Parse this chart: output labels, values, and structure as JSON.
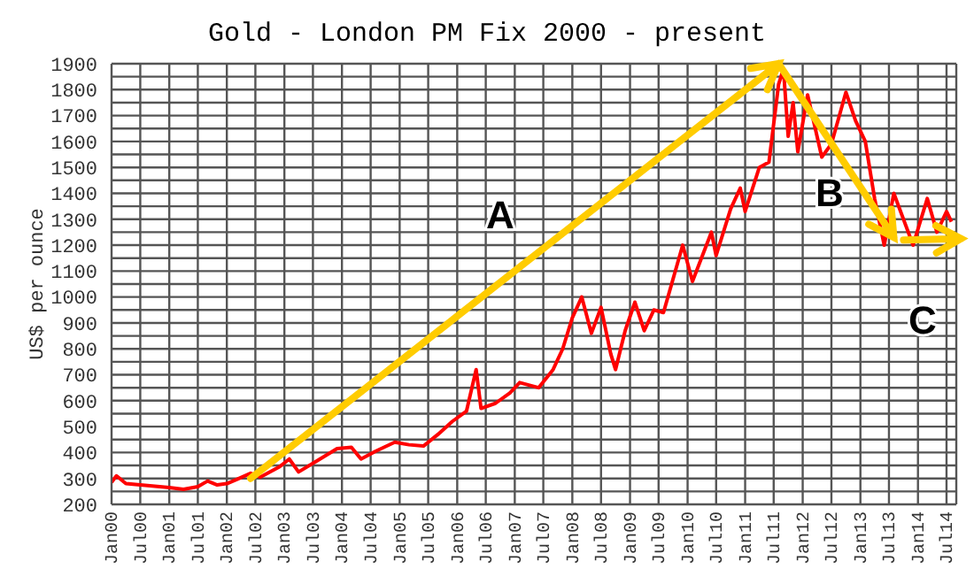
{
  "chart_data": {
    "type": "line",
    "title": "Gold - London PM Fix 2000 - present",
    "ylabel": "US$ per ounce",
    "x": [
      "2000-01",
      "2000-02",
      "2000-04",
      "2000-09",
      "2001-01",
      "2001-04",
      "2001-07",
      "2001-09",
      "2001-11",
      "2002-01",
      "2002-03",
      "2002-06",
      "2002-08",
      "2002-12",
      "2003-02",
      "2003-04",
      "2003-08",
      "2003-12",
      "2004-03",
      "2004-05",
      "2004-08",
      "2004-12",
      "2005-03",
      "2005-06",
      "2005-09",
      "2005-12",
      "2006-03",
      "2006-05",
      "2006-06",
      "2006-09",
      "2006-12",
      "2007-02",
      "2007-06",
      "2007-09",
      "2007-11",
      "2008-01",
      "2008-03",
      "2008-05",
      "2008-07",
      "2008-09",
      "2008-10",
      "2008-12",
      "2009-02",
      "2009-04",
      "2009-06",
      "2009-08",
      "2009-12",
      "2010-02",
      "2010-06",
      "2010-07",
      "2010-10",
      "2010-12",
      "2011-01",
      "2011-04",
      "2011-06",
      "2011-08",
      "2011-09",
      "2011-10",
      "2011-11",
      "2011-12",
      "2012-02",
      "2012-05",
      "2012-07",
      "2012-10",
      "2012-12",
      "2013-02",
      "2013-04",
      "2013-06",
      "2013-08",
      "2013-12",
      "2014-03",
      "2014-05",
      "2014-07",
      "2014-08"
    ],
    "series": [
      {
        "color": "#ff0000",
        "values": [
          285,
          310,
          280,
          272,
          265,
          258,
          268,
          290,
          275,
          280,
          295,
          320,
          305,
          345,
          375,
          325,
          370,
          415,
          420,
          375,
          405,
          440,
          430,
          425,
          470,
          520,
          560,
          720,
          570,
          590,
          630,
          670,
          650,
          720,
          800,
          920,
          1000,
          860,
          960,
          780,
          720,
          870,
          980,
          870,
          950,
          940,
          1200,
          1060,
          1250,
          1160,
          1340,
          1420,
          1330,
          1500,
          1520,
          1820,
          1880,
          1620,
          1750,
          1560,
          1780,
          1540,
          1590,
          1790,
          1680,
          1600,
          1380,
          1200,
          1400,
          1200,
          1380,
          1250,
          1330,
          1290
        ]
      }
    ],
    "xlim": [
      "2000-01",
      "2014-09"
    ],
    "xticks": [
      {
        "value": "2000-01",
        "label": "Jan00"
      },
      {
        "value": "2000-07",
        "label": "Jul00"
      },
      {
        "value": "2001-01",
        "label": "Jan01"
      },
      {
        "value": "2001-07",
        "label": "Jul01"
      },
      {
        "value": "2002-01",
        "label": "Jan02"
      },
      {
        "value": "2002-07",
        "label": "Jul02"
      },
      {
        "value": "2003-01",
        "label": "Jan03"
      },
      {
        "value": "2003-07",
        "label": "Jul03"
      },
      {
        "value": "2004-01",
        "label": "Jan04"
      },
      {
        "value": "2004-07",
        "label": "Jul04"
      },
      {
        "value": "2005-01",
        "label": "Jan05"
      },
      {
        "value": "2005-07",
        "label": "Jul05"
      },
      {
        "value": "2006-01",
        "label": "Jan06"
      },
      {
        "value": "2006-07",
        "label": "Jul06"
      },
      {
        "value": "2007-01",
        "label": "Jan07"
      },
      {
        "value": "2007-07",
        "label": "Jul07"
      },
      {
        "value": "2008-01",
        "label": "Jan08"
      },
      {
        "value": "2008-07",
        "label": "Jul08"
      },
      {
        "value": "2009-01",
        "label": "Jan09"
      },
      {
        "value": "2009-07",
        "label": "Jul09"
      },
      {
        "value": "2010-01",
        "label": "Jan10"
      },
      {
        "value": "2010-07",
        "label": "Jul10"
      },
      {
        "value": "2011-01",
        "label": "Jan11"
      },
      {
        "value": "2011-07",
        "label": "Jul11"
      },
      {
        "value": "2012-01",
        "label": "Jan12"
      },
      {
        "value": "2012-07",
        "label": "Jul12"
      },
      {
        "value": "2013-01",
        "label": "Jan13"
      },
      {
        "value": "2013-07",
        "label": "Jul13"
      },
      {
        "value": "2014-01",
        "label": "Jan14"
      },
      {
        "value": "2014-07",
        "label": "Jul14"
      }
    ],
    "ylim": [
      200,
      1900
    ],
    "yticks": [
      200,
      {
        "value": 250,
        "label": null
      },
      300,
      {
        "value": 350,
        "label": null
      },
      400,
      {
        "value": 450,
        "label": null
      },
      500,
      {
        "value": 550,
        "label": null
      },
      600,
      {
        "value": 650,
        "label": null
      },
      700,
      {
        "value": 750,
        "label": null
      },
      800,
      {
        "value": 850,
        "label": null
      },
      900,
      {
        "value": 950,
        "label": null
      },
      1000,
      {
        "value": 1050,
        "label": null
      },
      1100,
      {
        "value": 1150,
        "label": null
      },
      1200,
      {
        "value": 1250,
        "label": null
      },
      1300,
      {
        "value": 1350,
        "label": null
      },
      1400,
      {
        "value": 1450,
        "label": null
      },
      1500,
      {
        "value": 1550,
        "label": null
      },
      1600,
      {
        "value": 1650,
        "label": null
      },
      1700,
      {
        "value": 1750,
        "label": null
      },
      1800,
      {
        "value": 1850,
        "label": null
      },
      1900
    ],
    "grid": true,
    "marker": "none",
    "line_style": "solid",
    "annotations": [
      "A",
      "B",
      "C"
    ]
  }
}
